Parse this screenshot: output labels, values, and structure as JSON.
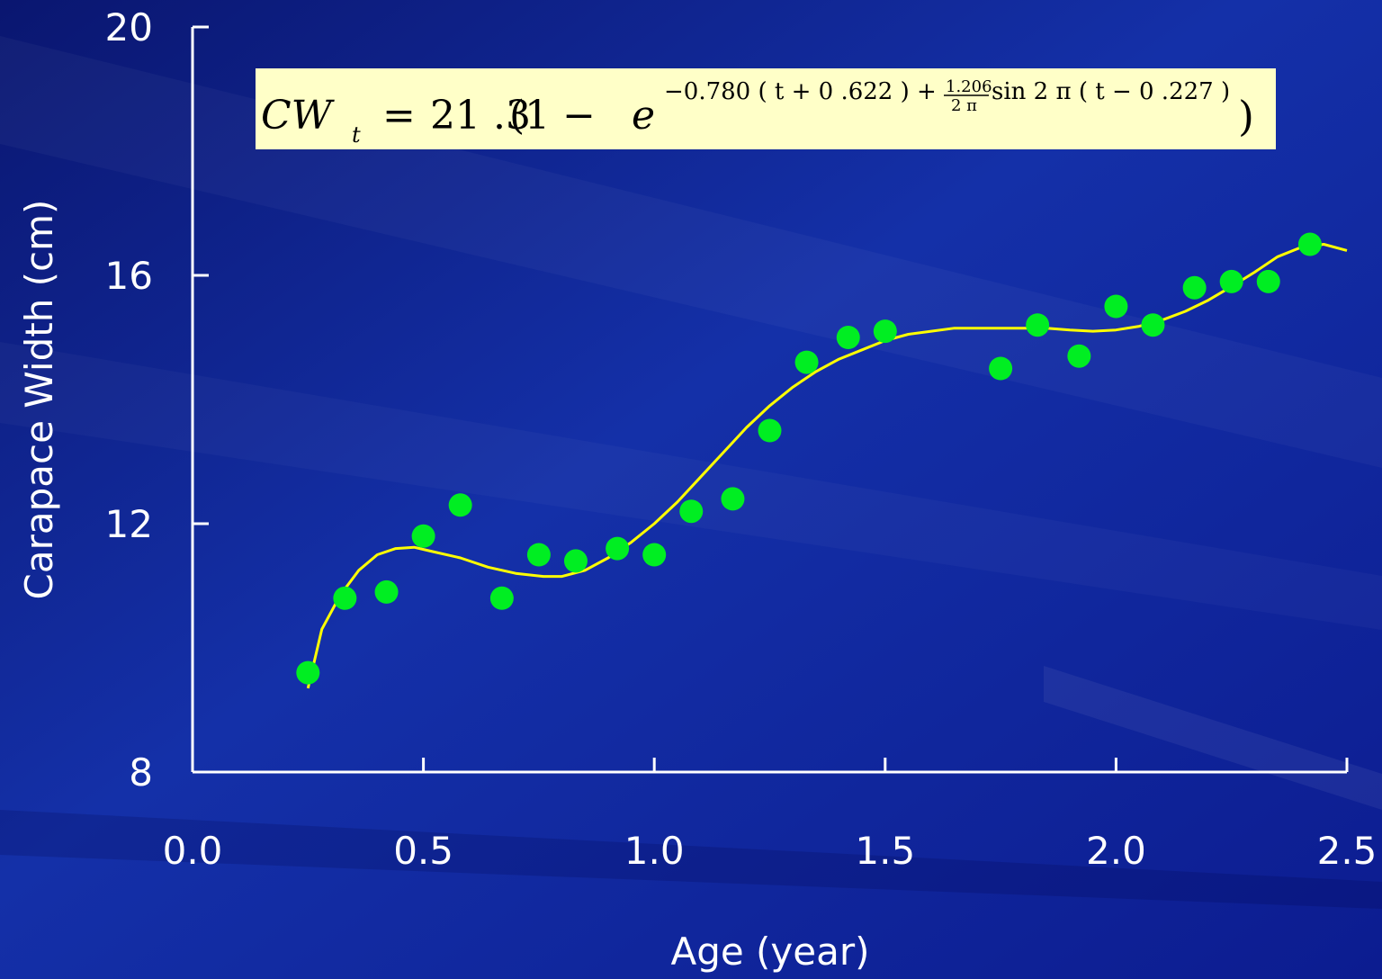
{
  "colors": {
    "background": "#0c1a8c",
    "axis": "#ffffff",
    "points": "#00ee22",
    "fit_line": "#ffff00",
    "formula_box": "#ffffc8"
  },
  "chart_data": {
    "type": "scatter",
    "title": "",
    "xlabel": "Age (year)",
    "ylabel": "Carapace Width (cm)",
    "xlim": [
      0.0,
      2.5
    ],
    "ylim": [
      8,
      20
    ],
    "x_ticks": [
      "0.0",
      "0.5",
      "1.0",
      "1.5",
      "2.0",
      "2.5"
    ],
    "x_tick_values": [
      0.0,
      0.5,
      1.0,
      1.5,
      2.0,
      2.5
    ],
    "y_ticks": [
      "8",
      "12",
      "16",
      "20"
    ],
    "y_tick_values": [
      8,
      12,
      16,
      20
    ],
    "grid": false,
    "legend": "none",
    "annotation": {
      "lhs": "CW",
      "lhs_sub": "t",
      "eq": "=",
      "linf": "21 .3",
      "open": "(1 − ",
      "base": "e",
      "exp_main": "−0.780  ( t + 0 .622  ) + ",
      "frac_num": "1.206",
      "frac_den": "2 π",
      "exp_sin": " sin  2 π ( t − 0 .227  )",
      "close": ")"
    },
    "series": [
      {
        "type": "scatter",
        "x": [
          0.25,
          0.33,
          0.42,
          0.5,
          0.58,
          0.67,
          0.75,
          0.83,
          0.92,
          1.0,
          1.08,
          1.17,
          1.25,
          1.33,
          1.42,
          1.5,
          1.75,
          1.83,
          1.92,
          2.0,
          2.08,
          2.17,
          2.25,
          2.33,
          2.42
        ],
        "y": [
          9.6,
          10.8,
          10.9,
          11.8,
          12.3,
          10.8,
          11.5,
          11.4,
          11.6,
          11.5,
          12.2,
          12.4,
          13.5,
          14.6,
          15.0,
          15.1,
          14.5,
          15.2,
          14.7,
          15.5,
          15.2,
          15.8,
          15.9,
          15.9,
          16.5
        ]
      },
      {
        "type": "line",
        "x": [
          0.25,
          0.28,
          0.32,
          0.36,
          0.4,
          0.44,
          0.48,
          0.52,
          0.58,
          0.64,
          0.7,
          0.76,
          0.8,
          0.85,
          0.9,
          0.95,
          1.0,
          1.05,
          1.1,
          1.15,
          1.2,
          1.25,
          1.3,
          1.35,
          1.4,
          1.45,
          1.5,
          1.55,
          1.6,
          1.65,
          1.7,
          1.75,
          1.8,
          1.85,
          1.9,
          1.95,
          2.0,
          2.05,
          2.1,
          2.15,
          2.2,
          2.25,
          2.3,
          2.35,
          2.4,
          2.45,
          2.5
        ],
        "y": [
          9.35,
          10.3,
          10.85,
          11.25,
          11.5,
          11.6,
          11.62,
          11.55,
          11.45,
          11.3,
          11.2,
          11.15,
          11.15,
          11.25,
          11.45,
          11.7,
          12.0,
          12.35,
          12.75,
          13.15,
          13.55,
          13.9,
          14.2,
          14.45,
          14.65,
          14.8,
          14.95,
          15.05,
          15.1,
          15.15,
          15.15,
          15.15,
          15.15,
          15.15,
          15.12,
          15.1,
          15.12,
          15.18,
          15.28,
          15.42,
          15.6,
          15.82,
          16.05,
          16.3,
          16.45,
          16.5,
          16.4
        ]
      }
    ]
  }
}
